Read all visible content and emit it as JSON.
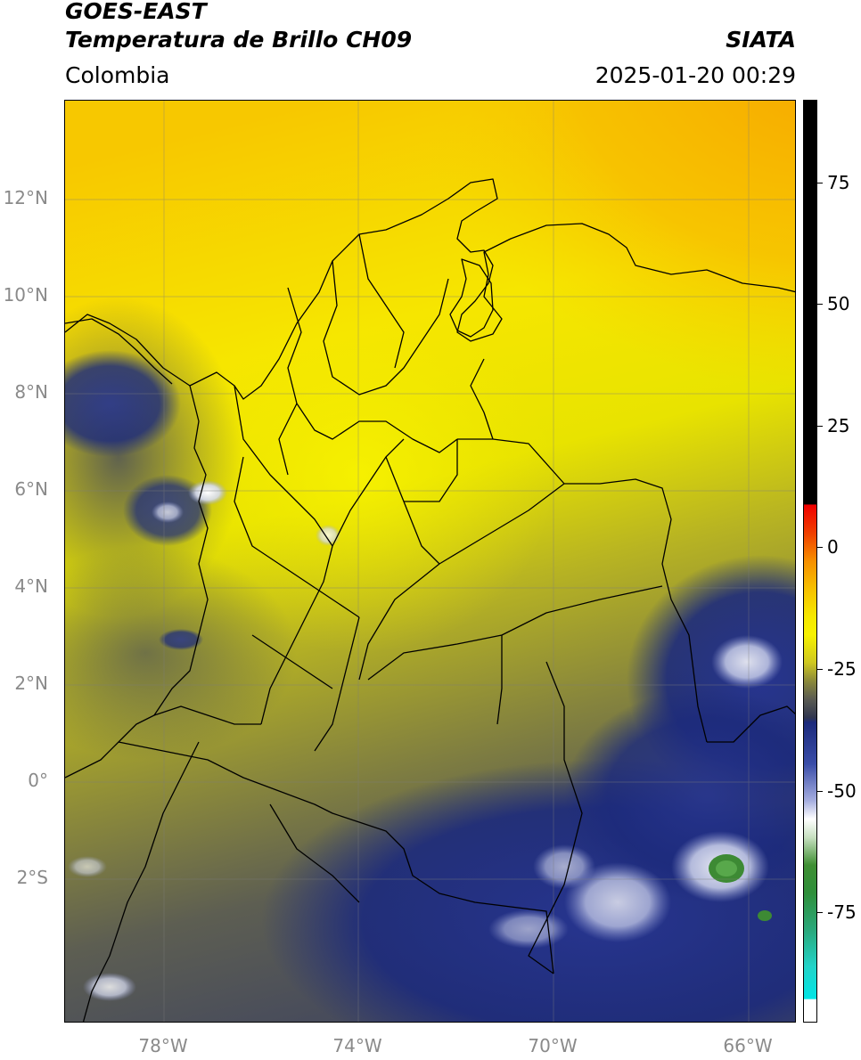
{
  "header": {
    "satellite": "GOES-EAST",
    "product": "Temperatura de Brillo CH09",
    "source": "SIATA",
    "region": "Colombia",
    "timestamp": "2025-01-20 00:29"
  },
  "axes": {
    "lat_labels": [
      "12°N",
      "10°N",
      "8°N",
      "6°N",
      "4°N",
      "2°N",
      "0°",
      "2°S"
    ],
    "lon_labels": [
      "78°W",
      "74°W",
      "70°W",
      "66°W"
    ]
  },
  "colorbar": {
    "labels": [
      "75",
      "50",
      "25",
      "0",
      "-25",
      "-50",
      "-75"
    ]
  },
  "colors": {
    "yellow": "#f5f000",
    "orange": "#f7b400",
    "olive": "#8c8a3a",
    "navy": "#1c2a7c",
    "slate": "#4a4f63"
  }
}
